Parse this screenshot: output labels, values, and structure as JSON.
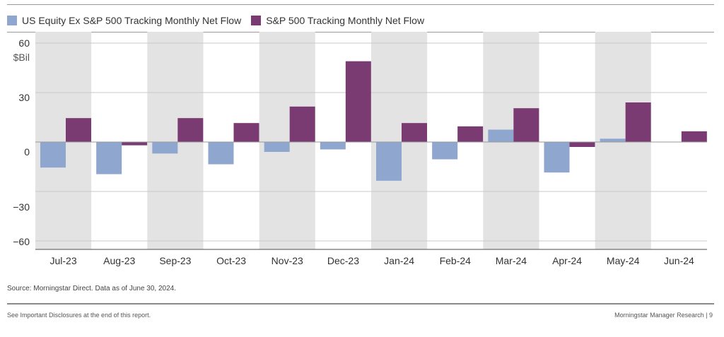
{
  "legend": [
    {
      "label": "US Equity Ex S&P 500 Tracking Monthly Net Flow",
      "color": "#8fa6cf"
    },
    {
      "label": "S&P 500 Tracking Monthly Net Flow",
      "color": "#7a3a72"
    }
  ],
  "chart_data": {
    "type": "bar",
    "categories": [
      "Jul-23",
      "Aug-23",
      "Sep-23",
      "Oct-23",
      "Nov-23",
      "Dec-23",
      "Jan-24",
      "Feb-24",
      "Mar-24",
      "Apr-24",
      "May-24",
      "Jun-24"
    ],
    "series": [
      {
        "name": "US Equity Ex S&P 500 Tracking Monthly Net Flow",
        "color": "#8fa6cf",
        "values": [
          -15.5,
          -19.5,
          -7,
          -13.5,
          -6,
          -4.5,
          -23.5,
          -10.5,
          7.5,
          -18.5,
          2,
          0
        ]
      },
      {
        "name": "S&P 500 Tracking Monthly Net Flow",
        "color": "#7a3a72",
        "values": [
          14.5,
          -2,
          14.5,
          11.5,
          21.5,
          49,
          11.5,
          9.5,
          20.5,
          -3,
          24,
          6.5
        ]
      }
    ],
    "ylabel": "$Bil",
    "yticks": [
      60,
      30,
      0,
      -30,
      -60
    ],
    "ytick_labels": [
      "60",
      "30",
      "0",
      "−30",
      "−60"
    ],
    "ylim": [
      -60,
      60
    ],
    "background_bands": "alternating grey columns",
    "grid": "horizontal at ticks"
  },
  "source": "Source: Morningstar Direct. Data as of June 30, 2024.",
  "footer": {
    "left": "See Important Disclosures at the end of this report.",
    "right": "Morningstar Manager Research | 9"
  }
}
